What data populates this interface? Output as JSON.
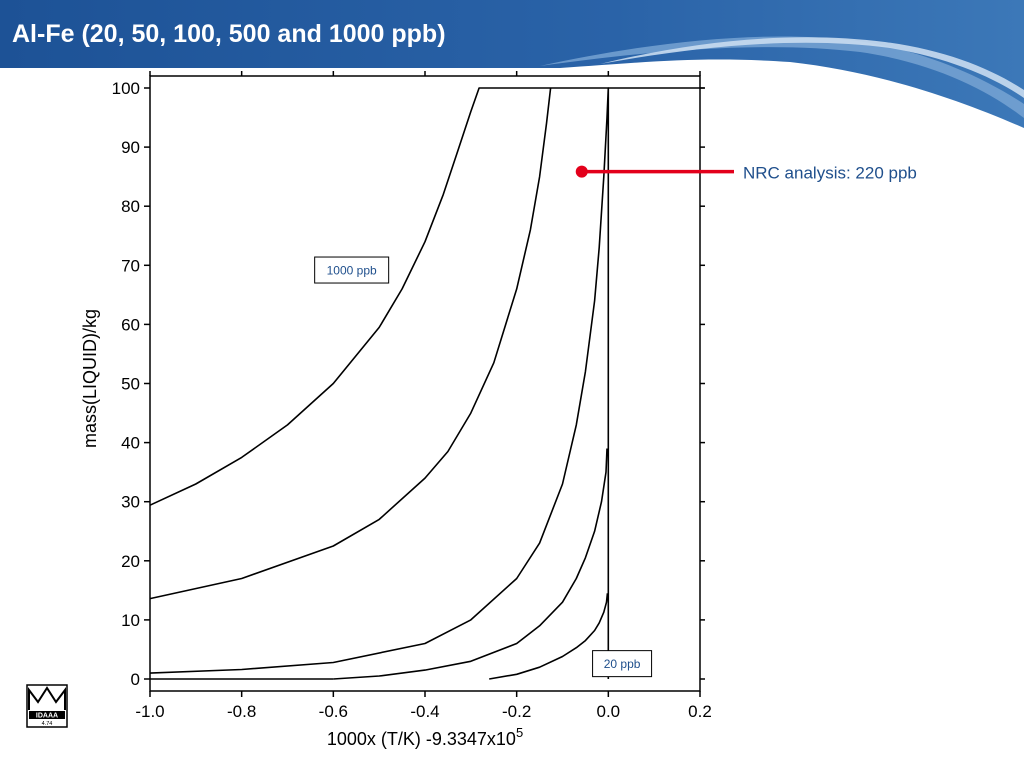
{
  "slide": {
    "title": "Al-Fe (20, 50, 100, 500 and 1000 ppb)",
    "title_color": "#ffffff",
    "banner_color": "#1f5598"
  },
  "logo": {
    "name": "IDAAA",
    "number": "4.74"
  },
  "chart_data": {
    "type": "line",
    "title": "",
    "xlabel": "1000x (T/K) -9.3347x10",
    "xlabel_superscript": "5",
    "ylabel": "mass(LIQUID)/kg",
    "xlim": [
      -1.0,
      0.2
    ],
    "ylim": [
      0,
      100
    ],
    "xticks": [
      -1.0,
      -0.8,
      -0.6,
      -0.4,
      -0.2,
      0.0,
      0.2
    ],
    "xtick_labels": [
      "-1.0",
      "-0.8",
      "-0.6",
      "-0.4",
      "-0.2",
      "0.0",
      "0.2"
    ],
    "yticks": [
      0,
      10,
      20,
      30,
      40,
      50,
      60,
      70,
      80,
      90,
      100
    ],
    "ytick_labels": [
      "0",
      "10",
      "20",
      "30",
      "40",
      "50",
      "60",
      "70",
      "80",
      "90",
      "100"
    ],
    "grid": false,
    "line_color": "#000000",
    "series": [
      {
        "x": [
          -1.0,
          -0.9,
          -0.8,
          -0.7,
          -0.6,
          -0.5,
          -0.45,
          -0.4,
          -0.36,
          -0.33,
          -0.3,
          -0.282,
          0.21
        ],
        "y": [
          29.4,
          33,
          37.5,
          43,
          50,
          59.5,
          66,
          74,
          82,
          89,
          96,
          100,
          100
        ]
      },
      {
        "x": [
          -1.0,
          -0.8,
          -0.6,
          -0.5,
          -0.4,
          -0.35,
          -0.3,
          -0.25,
          -0.2,
          -0.17,
          -0.15,
          -0.135,
          -0.126
        ],
        "y": [
          13.6,
          17,
          22.5,
          27,
          34,
          38.5,
          45,
          53.5,
          66,
          76,
          85,
          94,
          100
        ]
      },
      {
        "x": [
          -1.0,
          -0.8,
          -0.6,
          -0.4,
          -0.3,
          -0.2,
          -0.15,
          -0.1,
          -0.07,
          -0.05,
          -0.03,
          -0.02,
          -0.01,
          -0.003,
          0.0,
          0.0
        ],
        "y": [
          1,
          1.6,
          2.8,
          6,
          10,
          17,
          23,
          33,
          43,
          52,
          64,
          73,
          85,
          95,
          100,
          0
        ]
      },
      {
        "x": [
          -0.6,
          -0.5,
          -0.4,
          -0.3,
          -0.2,
          -0.15,
          -0.1,
          -0.07,
          -0.05,
          -0.03,
          -0.015,
          -0.005,
          -0.003
        ],
        "y": [
          0,
          0.5,
          1.5,
          3,
          6,
          9,
          13,
          17,
          20.5,
          25,
          30,
          35,
          39
        ]
      },
      {
        "x": [
          -0.26,
          -0.2,
          -0.15,
          -0.1,
          -0.07,
          -0.05,
          -0.03,
          -0.02,
          -0.01,
          -0.004,
          -0.002
        ],
        "y": [
          0,
          0.8,
          2,
          3.8,
          5.3,
          6.5,
          8.2,
          9.5,
          11.3,
          13,
          14.5
        ]
      },
      {
        "x": [
          -1.0,
          -0.6
        ],
        "y": [
          0,
          0
        ]
      }
    ],
    "box_labels": [
      {
        "text": "1000 ppb",
        "x": -0.56,
        "y": 69.2
      },
      {
        "text": "20 ppb",
        "x": 0.03,
        "y": 2.6
      }
    ],
    "annotation": {
      "text": "NRC analysis: 220 ppb",
      "point": [
        -0.058,
        85
      ],
      "color": "#e3001b"
    }
  }
}
